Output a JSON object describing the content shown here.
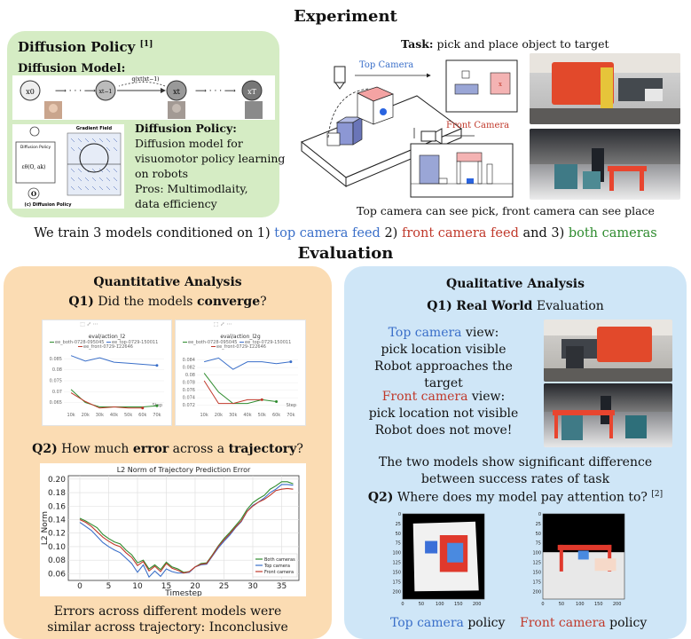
{
  "experiment": {
    "title": "Experiment",
    "diffusion_box": {
      "title": "Diffusion Policy",
      "title_ref": "[1]",
      "model_label": "Diffusion Model:",
      "chain_x0": "x0",
      "chain_xt1": "xt−1",
      "chain_xt": "xt",
      "chain_xT": "xT",
      "chain_q": "q(xt|xt−1)",
      "policy_heading": "Diffusion Policy:",
      "policy_line1": "Diffusion model for",
      "policy_line2": "visuomotor policy learning",
      "policy_line3": "on robots",
      "policy_line4": "Pros: Multimodlaity,",
      "policy_line5": "data efficiency",
      "mini_gradient_title": "Gradient Field",
      "mini_caption": "(c) Diffusion Policy",
      "mini_policy_label": "Diffusion Policy",
      "mini_eps": "εθ(O, ak)",
      "mini_obs": "O"
    },
    "task_label": "Task:",
    "task_text": "pick and place object to target",
    "top_camera_label": "Top Camera",
    "front_camera_label": "Front Camera",
    "caption": "Top camera can see pick, front camera can see place"
  },
  "train_line": {
    "prefix": "We train 3 models conditioned on 1) ",
    "top": "top camera feed",
    "mid": " 2) ",
    "front": "front camera feed",
    "mid2": " and 3) ",
    "both": "both cameras"
  },
  "evaluation": {
    "title": "Evaluation",
    "quant": {
      "heading": "Quantitative Analysis",
      "q1_prefix": "Q1)",
      "q1_text1": " Did the models ",
      "q1_bold": "converge",
      "q1_text2": "?",
      "q2_prefix": "Q2)",
      "q2_text1": " How much ",
      "q2_bold1": "error",
      "q2_text2": " across a ",
      "q2_bold2": "trajectory",
      "q2_text3": "?",
      "conclusion_line1": "Errors across different models were",
      "conclusion_line2": "similar across trajectory: Inconclusive"
    },
    "qual": {
      "heading": "Qualitative Analysis",
      "q1_prefix": "Q1)",
      "q1_bold": "Real World",
      "q1_text": " Evaluation",
      "top_view_colored": "Top camera",
      "top_view_rest": " view:",
      "top_line2": "pick location visible",
      "top_line3": "Robot approaches the target",
      "front_view_colored": "Front camera",
      "front_view_rest": " view:",
      "front_line2": "pick location not visible",
      "front_line3": "Robot does not move!",
      "diff_line1": "The two models show significant difference",
      "diff_line2": "between success rates of task",
      "q2_prefix": "Q2)",
      "q2_text": " Where does my model pay attention to?",
      "q2_ref": "[2]",
      "top_policy_colored": "Top camera",
      "top_policy_rest": " policy",
      "front_policy_colored": "Front camera",
      "front_policy_rest": " policy"
    }
  },
  "colors": {
    "both": "#2e8b2e",
    "top": "#3a6fc9",
    "front": "#c0392b",
    "diffusion_box_bg": "#d5ecc4",
    "quant_box_bg": "#fbdcb3",
    "qual_box_bg": "#cfe6f7"
  },
  "chart_data": [
    {
      "type": "line",
      "title": "eval/action_l2",
      "legend": [
        "ee_both-0728-095045",
        "ee_top-0729-150011",
        "ee_front-0729-122646"
      ],
      "x_ticks": [
        "10k",
        "20k",
        "30k",
        "40k",
        "50k",
        "60k",
        "70k"
      ],
      "x_label": "Step",
      "ylim": [
        0.062,
        0.088
      ],
      "yticks": [
        "0.065",
        "0.07",
        "0.075",
        "0.08",
        "0.085"
      ],
      "series": [
        {
          "name": "ee_both-0728-095045",
          "color": "#2e8b2e",
          "x": [
            10,
            20,
            30,
            40,
            50,
            60,
            70
          ],
          "y": [
            0.071,
            0.065,
            0.063,
            0.063,
            0.063,
            0.063,
            0.0635
          ]
        },
        {
          "name": "ee_top-0729-150011",
          "color": "#3a6fc9",
          "x": [
            10,
            20,
            30,
            40,
            50,
            60,
            70
          ],
          "y": [
            0.0865,
            0.084,
            0.0855,
            0.0835,
            0.083,
            0.0825,
            0.082
          ]
        },
        {
          "name": "ee_front-0729-122646",
          "color": "#c0392b",
          "x": [
            10,
            20,
            30,
            40,
            50,
            60
          ],
          "y": [
            0.0695,
            0.0655,
            0.0625,
            0.063,
            0.0625,
            0.0625
          ]
        }
      ]
    },
    {
      "type": "line",
      "title": "eval/action_l2g",
      "legend": [
        "ee_both-0728-095045",
        "ee_top-0729-150011",
        "ee_front-0729-122646"
      ],
      "x_ticks": [
        "10k",
        "20k",
        "30k",
        "40k",
        "50k",
        "60k",
        "70k"
      ],
      "x_label": "Step",
      "ylim": [
        0.071,
        0.086
      ],
      "yticks": [
        "0.072",
        "0.074",
        "0.076",
        "0.078",
        "0.08",
        "0.082",
        "0.084"
      ],
      "series": [
        {
          "name": "ee_both-0728-095045",
          "color": "#2e8b2e",
          "x": [
            10,
            20,
            30,
            40,
            50,
            60
          ],
          "y": [
            0.0805,
            0.0755,
            0.0725,
            0.0725,
            0.0735,
            0.073
          ]
        },
        {
          "name": "ee_top-0729-150011",
          "color": "#3a6fc9",
          "x": [
            10,
            20,
            30,
            40,
            50,
            60,
            70
          ],
          "y": [
            0.0835,
            0.0845,
            0.0815,
            0.0835,
            0.0835,
            0.083,
            0.0835
          ]
        },
        {
          "name": "ee_front-0729-122646",
          "color": "#c0392b",
          "x": [
            10,
            20,
            30,
            40,
            50
          ],
          "y": [
            0.0785,
            0.0725,
            0.0725,
            0.0735,
            0.0735
          ]
        }
      ]
    },
    {
      "type": "line",
      "title": "L2 Norm of Trajectory Prediction Error",
      "xlabel": "Timestep",
      "ylabel": "L2 Norm",
      "xlim": [
        -2,
        38
      ],
      "ylim": [
        0.05,
        0.205
      ],
      "xticks": [
        0,
        5,
        10,
        15,
        20,
        25,
        30,
        35
      ],
      "yticks": [
        0.06,
        0.08,
        0.1,
        0.12,
        0.14,
        0.16,
        0.18,
        0.2
      ],
      "legend": [
        "Both cameras",
        "Top camera",
        "Front camera"
      ],
      "legend_position": "lower-right",
      "grid": true,
      "series": [
        {
          "name": "Both cameras",
          "color": "#2e8b2e",
          "x": [
            0,
            1,
            2,
            3,
            4,
            5,
            6,
            7,
            8,
            9,
            10,
            11,
            12,
            13,
            14,
            15,
            16,
            17,
            18,
            19,
            20,
            21,
            22,
            23,
            24,
            25,
            26,
            27,
            28,
            29,
            30,
            31,
            32,
            33,
            34,
            35,
            36,
            37
          ],
          "y": [
            0.142,
            0.138,
            0.133,
            0.128,
            0.118,
            0.112,
            0.107,
            0.104,
            0.095,
            0.088,
            0.076,
            0.08,
            0.067,
            0.073,
            0.066,
            0.077,
            0.07,
            0.067,
            0.062,
            0.063,
            0.07,
            0.075,
            0.076,
            0.088,
            0.101,
            0.112,
            0.121,
            0.131,
            0.141,
            0.155,
            0.165,
            0.171,
            0.176,
            0.185,
            0.19,
            0.196,
            0.196,
            0.193
          ]
        },
        {
          "name": "Top camera",
          "color": "#3a6fc9",
          "x": [
            0,
            1,
            2,
            3,
            4,
            5,
            6,
            7,
            8,
            9,
            10,
            11,
            12,
            13,
            14,
            15,
            16,
            17,
            18,
            19,
            20,
            21,
            22,
            23,
            24,
            25,
            26,
            27,
            28,
            29,
            30,
            31,
            32,
            33,
            34,
            35,
            36,
            37
          ],
          "y": [
            0.136,
            0.13,
            0.124,
            0.115,
            0.106,
            0.1,
            0.095,
            0.091,
            0.083,
            0.075,
            0.062,
            0.073,
            0.055,
            0.064,
            0.056,
            0.067,
            0.063,
            0.061,
            0.061,
            0.062,
            0.07,
            0.073,
            0.074,
            0.086,
            0.098,
            0.108,
            0.117,
            0.128,
            0.137,
            0.152,
            0.161,
            0.166,
            0.172,
            0.18,
            0.185,
            0.192,
            0.192,
            0.191
          ]
        },
        {
          "name": "Front camera",
          "color": "#c0392b",
          "x": [
            0,
            1,
            2,
            3,
            4,
            5,
            6,
            7,
            8,
            9,
            10,
            11,
            12,
            13,
            14,
            15,
            16,
            17,
            18,
            19,
            20,
            21,
            22,
            23,
            24,
            25,
            26,
            27,
            28,
            29,
            30,
            31,
            32,
            33,
            34,
            35,
            36,
            37
          ],
          "y": [
            0.14,
            0.136,
            0.13,
            0.122,
            0.114,
            0.108,
            0.103,
            0.1,
            0.091,
            0.084,
            0.072,
            0.078,
            0.064,
            0.071,
            0.063,
            0.075,
            0.068,
            0.065,
            0.061,
            0.063,
            0.07,
            0.074,
            0.075,
            0.087,
            0.1,
            0.11,
            0.119,
            0.129,
            0.138,
            0.152,
            0.16,
            0.166,
            0.17,
            0.176,
            0.183,
            0.185,
            0.186,
            0.185
          ]
        }
      ]
    },
    {
      "type": "heatmap",
      "title": "Top camera policy attention",
      "xticks": [
        0,
        50,
        100,
        150,
        200
      ],
      "yticks": [
        0,
        25,
        50,
        75,
        100,
        125,
        150,
        175,
        200
      ]
    },
    {
      "type": "heatmap",
      "title": "Front camera policy attention",
      "xticks": [
        0,
        50,
        100,
        150,
        200
      ],
      "yticks": [
        0,
        25,
        50,
        75,
        100,
        125,
        150,
        175,
        200
      ]
    }
  ]
}
